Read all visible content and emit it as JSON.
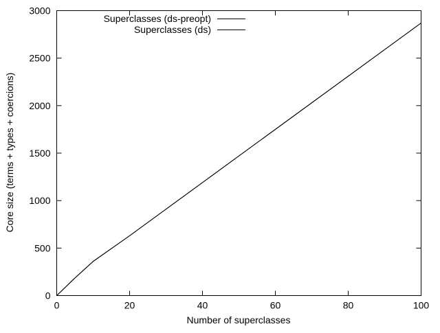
{
  "chart_data": {
    "type": "line",
    "title": "",
    "xlabel": "Number of superclasses",
    "ylabel": "Core size (terms + types + coercions)",
    "xlim": [
      0,
      100
    ],
    "ylim": [
      0,
      3000
    ],
    "xticks": [
      0,
      20,
      40,
      60,
      80,
      100
    ],
    "yticks": [
      0,
      500,
      1000,
      1500,
      2000,
      2500,
      3000
    ],
    "grid": false,
    "legend_position": "top-left",
    "series": [
      {
        "name": "Superclasses (ds-preopt)",
        "color": "#000000",
        "x": [
          0,
          5,
          10,
          20,
          30,
          40,
          50,
          60,
          70,
          80,
          90,
          100
        ],
        "y": [
          0,
          185,
          360,
          630,
          910,
          1190,
          1470,
          1750,
          2030,
          2310,
          2590,
          2870
        ]
      },
      {
        "name": "Superclasses (ds)",
        "color": "#000000",
        "x": [
          0,
          5,
          10,
          20,
          30,
          40,
          50,
          60,
          70,
          80,
          90,
          100
        ],
        "y": [
          0,
          185,
          360,
          630,
          910,
          1190,
          1470,
          1750,
          2030,
          2310,
          2590,
          2870
        ]
      }
    ]
  }
}
